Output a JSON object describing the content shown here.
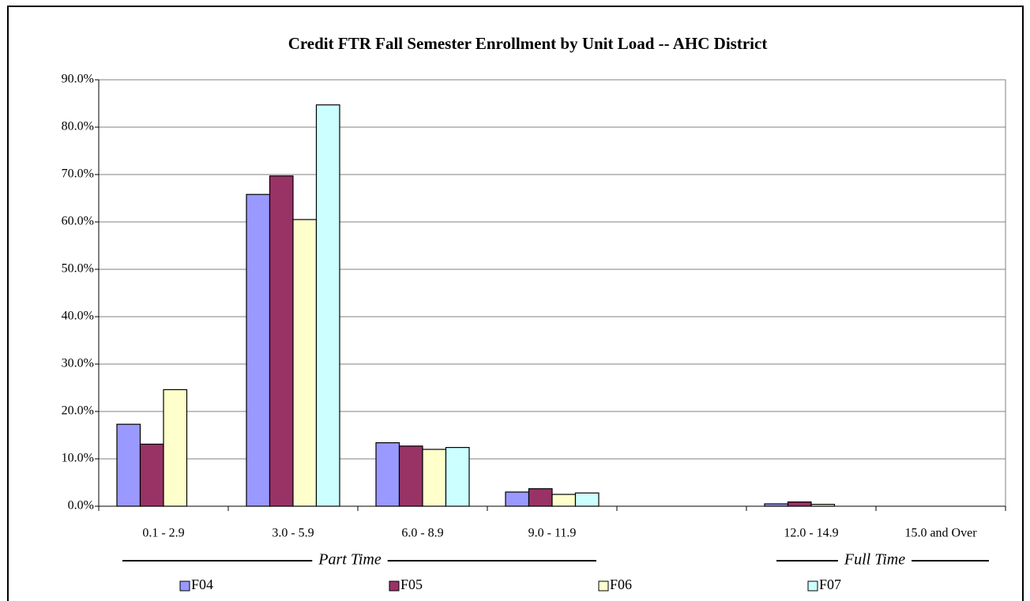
{
  "chart_data": {
    "type": "bar",
    "title": "Credit FTR Fall Semester Enrollment by Unit Load -- AHC District",
    "categories": [
      "0.1 - 2.9",
      "3.0 - 5.9",
      "6.0 - 8.9",
      "9.0 - 11.9",
      null,
      "12.0 - 14.9",
      "15.0 and Over"
    ],
    "series": [
      {
        "name": "F04",
        "color": "#9999ff",
        "values": [
          17.3,
          65.8,
          13.4,
          3.0,
          null,
          0.5,
          0
        ]
      },
      {
        "name": "F05",
        "color": "#993366",
        "values": [
          13.1,
          69.7,
          12.7,
          3.7,
          null,
          0.9,
          0
        ]
      },
      {
        "name": "F06",
        "color": "#ffffcc",
        "values": [
          24.6,
          60.5,
          12.0,
          2.5,
          null,
          0.4,
          0
        ]
      },
      {
        "name": "F07",
        "color": "#ccffff",
        "values": [
          0,
          84.7,
          12.4,
          2.8,
          null,
          0,
          0
        ]
      }
    ],
    "ylim": [
      0,
      90
    ],
    "yticks": [
      {
        "value": 0,
        "label": "0.0%"
      },
      {
        "value": 10,
        "label": "10.0%"
      },
      {
        "value": 20,
        "label": "20.0%"
      },
      {
        "value": 30,
        "label": "30.0%"
      },
      {
        "value": 40,
        "label": "40.0%"
      },
      {
        "value": 50,
        "label": "50.0%"
      },
      {
        "value": 60,
        "label": "60.0%"
      },
      {
        "value": 70,
        "label": "70.0%"
      },
      {
        "value": 80,
        "label": "80.0%"
      },
      {
        "value": 90,
        "label": "90.0%"
      }
    ],
    "grid": true,
    "annotations": [
      "Part Time",
      "Full Time"
    ]
  }
}
